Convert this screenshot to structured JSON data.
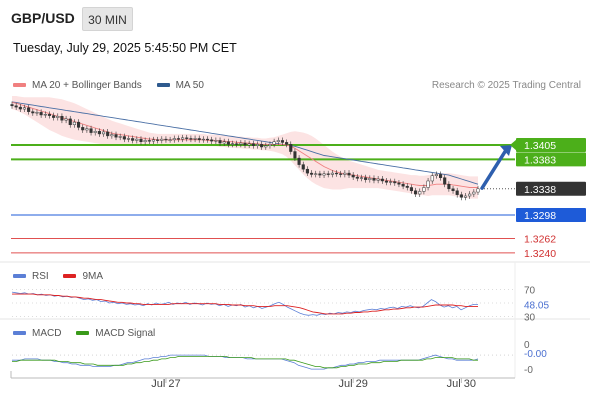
{
  "header": {
    "symbol": "GBP/USD",
    "timeframe": "30 MIN",
    "datetime": "Tuesday, July 29, 2025 5:45:50 PM CET"
  },
  "legend_main": {
    "ma20_label": "MA 20 + Bollinger Bands",
    "ma20_color": "#f08080",
    "ma50_label": "MA 50",
    "ma50_color": "#2e5a8e"
  },
  "credit": "Research © 2025 Trading Central",
  "legend_rsi": {
    "rsi_label": "RSI",
    "rsi_color": "#5b7fd6",
    "ma_label": "9MA",
    "ma_color": "#dd2222"
  },
  "legend_macd": {
    "macd_label": "MACD",
    "macd_color": "#5b7fd6",
    "signal_label": "MACD Signal",
    "signal_color": "#3a9a1a"
  },
  "chart_data": [
    {
      "type": "candlestick",
      "panel": "price",
      "ylim": [
        1.3226,
        1.348
      ],
      "current_price": 1.3338,
      "levels": [
        {
          "value": 1.3405,
          "label": "1.3405",
          "kind": "target",
          "color": "#4caf1a"
        },
        {
          "value": 1.3383,
          "label": "1.3383",
          "kind": "resistance",
          "color": "#4caf1a"
        },
        {
          "value": 1.3298,
          "label": "1.3298",
          "kind": "pivot",
          "color": "#1e5bd8"
        },
        {
          "value": 1.3262,
          "label": "1.3262",
          "kind": "support",
          "color": "#e05050"
        },
        {
          "value": 1.324,
          "label": "1.3240",
          "kind": "support",
          "color": "#e05050"
        }
      ],
      "close": [
        1.3465,
        1.3463,
        1.346,
        1.3462,
        1.3456,
        1.3454,
        1.3455,
        1.3451,
        1.3452,
        1.345,
        1.3447,
        1.3449,
        1.3443,
        1.3445,
        1.3436,
        1.344,
        1.3432,
        1.3428,
        1.343,
        1.3424,
        1.3426,
        1.3422,
        1.3425,
        1.3419,
        1.3421,
        1.3417,
        1.3418,
        1.3414,
        1.3415,
        1.3412,
        1.3414,
        1.341,
        1.3412,
        1.3411,
        1.3413,
        1.3412,
        1.3414,
        1.3413,
        1.3413,
        1.3415,
        1.3414,
        1.3416,
        1.3415,
        1.3414,
        1.3415,
        1.3413,
        1.3414,
        1.3413,
        1.3411,
        1.3412,
        1.3408,
        1.341,
        1.3406,
        1.3407,
        1.3406,
        1.3408,
        1.3405,
        1.3407,
        1.3404,
        1.3406,
        1.3402,
        1.3404,
        1.3406,
        1.341,
        1.3412,
        1.3409,
        1.3406,
        1.3395,
        1.3385,
        1.3375,
        1.3368,
        1.3362,
        1.336,
        1.3361,
        1.3359,
        1.3361,
        1.336,
        1.3362,
        1.3361,
        1.336,
        1.3362,
        1.3359,
        1.3356,
        1.3354,
        1.3355,
        1.3352,
        1.3354,
        1.3351,
        1.3353,
        1.335,
        1.3348,
        1.3349,
        1.3347,
        1.3345,
        1.3342,
        1.334,
        1.3335,
        1.333,
        1.3334,
        1.334,
        1.335,
        1.3358,
        1.336,
        1.3355,
        1.3345,
        1.3338,
        1.3335,
        1.3329,
        1.3325,
        1.3327,
        1.333,
        1.3333,
        1.3338
      ],
      "ma20": [
        1.347,
        1.3469,
        1.3467,
        1.3465,
        1.3463,
        1.3461,
        1.3459,
        1.3457,
        1.3455,
        1.3453,
        1.3451,
        1.3449,
        1.3447,
        1.3445,
        1.3443,
        1.3441,
        1.3439,
        1.3437,
        1.3435,
        1.3433,
        1.3431,
        1.3429,
        1.3427,
        1.3425,
        1.3423,
        1.3422,
        1.3421,
        1.342,
        1.3419,
        1.3418,
        1.3417,
        1.3416,
        1.3415,
        1.3414,
        1.3414,
        1.3413,
        1.3413,
        1.3413,
        1.3413,
        1.3413,
        1.3413,
        1.3413,
        1.3413,
        1.3413,
        1.3413,
        1.3413,
        1.3413,
        1.3412,
        1.3412,
        1.3412,
        1.3411,
        1.3411,
        1.341,
        1.341,
        1.3409,
        1.3409,
        1.3408,
        1.3408,
        1.3407,
        1.3407,
        1.3406,
        1.3406,
        1.3406,
        1.3406,
        1.3406,
        1.3406,
        1.3405,
        1.3403,
        1.34,
        1.3396,
        1.3392,
        1.3388,
        1.3384,
        1.338,
        1.3376,
        1.3372,
        1.3369,
        1.3366,
        1.3364,
        1.3362,
        1.3361,
        1.336,
        1.3359,
        1.3358,
        1.3357,
        1.3356,
        1.3355,
        1.3354,
        1.3353,
        1.3352,
        1.3351,
        1.335,
        1.3349,
        1.3348,
        1.3347,
        1.3346,
        1.3345,
        1.3344,
        1.3343,
        1.3343,
        1.3343,
        1.3344,
        1.3345,
        1.3345,
        1.3345,
        1.3345,
        1.3344,
        1.3343,
        1.3342,
        1.3341,
        1.334,
        1.334,
        1.334
      ],
      "ma50": [
        1.3471,
        1.347,
        1.3469,
        1.3468,
        1.3467,
        1.3466,
        1.3465,
        1.3464,
        1.3463,
        1.3462,
        1.3461,
        1.346,
        1.3459,
        1.3458,
        1.3457,
        1.3456,
        1.3455,
        1.3454,
        1.3453,
        1.3452,
        1.3451,
        1.345,
        1.3449,
        1.3448,
        1.3447,
        1.3446,
        1.3445,
        1.3444,
        1.3443,
        1.3442,
        1.3441,
        1.344,
        1.3439,
        1.3438,
        1.3437,
        1.3436,
        1.3435,
        1.3434,
        1.3433,
        1.3432,
        1.3431,
        1.343,
        1.3429,
        1.3428,
        1.3427,
        1.3426,
        1.3425,
        1.3424,
        1.3423,
        1.3422,
        1.3421,
        1.342,
        1.3419,
        1.3418,
        1.3417,
        1.3416,
        1.3415,
        1.3414,
        1.3413,
        1.3412,
        1.3411,
        1.341,
        1.3409,
        1.3408,
        1.3407,
        1.3406,
        1.3405,
        1.3404,
        1.3403,
        1.3401,
        1.3399,
        1.3397,
        1.3395,
        1.3393,
        1.3391,
        1.3389,
        1.3388,
        1.3387,
        1.3386,
        1.3385,
        1.3384,
        1.3383,
        1.3382,
        1.3381,
        1.338,
        1.3379,
        1.3378,
        1.3377,
        1.3376,
        1.3375,
        1.3374,
        1.3373,
        1.3372,
        1.3371,
        1.337,
        1.3369,
        1.3368,
        1.3367,
        1.3366,
        1.3365,
        1.3364,
        1.3363,
        1.3362,
        1.3361,
        1.336,
        1.3359,
        1.3357,
        1.3355,
        1.3353,
        1.3351,
        1.3349,
        1.3347,
        1.3345
      ],
      "bb_width": [
        0.001,
        0.0011,
        0.0012,
        0.0013,
        0.0015,
        0.0017,
        0.0019,
        0.0021,
        0.0023,
        0.0025,
        0.0026,
        0.0027,
        0.0028,
        0.0028,
        0.0028,
        0.0028,
        0.0027,
        0.0026,
        0.0025,
        0.0024,
        0.0023,
        0.0022,
        0.0021,
        0.002,
        0.0019,
        0.0018,
        0.0017,
        0.0016,
        0.0015,
        0.0014,
        0.0013,
        0.0012,
        0.0011,
        0.001,
        0.0009,
        0.0009,
        0.0009,
        0.0009,
        0.0009,
        0.0009,
        0.0009,
        0.0009,
        0.0009,
        0.0009,
        0.0009,
        0.0009,
        0.0009,
        0.0009,
        0.0009,
        0.0009,
        0.0009,
        0.0009,
        0.0009,
        0.0009,
        0.0009,
        0.0009,
        0.0009,
        0.0009,
        0.0009,
        0.0009,
        0.0009,
        0.0009,
        0.001,
        0.0011,
        0.0013,
        0.0015,
        0.0018,
        0.0022,
        0.0026,
        0.0029,
        0.0032,
        0.0034,
        0.0035,
        0.0035,
        0.0034,
        0.0033,
        0.0031,
        0.0029,
        0.0027,
        0.0025,
        0.0023,
        0.0021,
        0.002,
        0.0019,
        0.0018,
        0.0017,
        0.0016,
        0.0015,
        0.0014,
        0.0014,
        0.0014,
        0.0014,
        0.0014,
        0.0014,
        0.0014,
        0.0014,
        0.0014,
        0.0015,
        0.0015,
        0.0015,
        0.0016,
        0.0016,
        0.0017,
        0.0017,
        0.0017,
        0.0017,
        0.0017,
        0.0017,
        0.0017,
        0.0017,
        0.0017,
        0.0017,
        0.0017
      ],
      "forecast_arrow": {
        "from": 1.3339,
        "to": 1.3405
      }
    },
    {
      "type": "line",
      "panel": "rsi",
      "ylim": [
        28,
        72
      ],
      "ticks": [
        "70",
        "30"
      ],
      "current_value": "48.05",
      "series": [
        {
          "name": "RSI",
          "values": [
            66,
            65,
            64,
            65,
            63,
            64,
            62,
            63,
            61,
            62,
            60,
            61,
            59,
            60,
            58,
            59,
            57,
            55,
            56,
            54,
            55,
            52,
            53,
            50,
            51,
            49,
            50,
            48,
            49,
            47,
            48,
            46,
            49,
            47,
            50,
            48,
            49,
            51,
            48,
            50,
            49,
            51,
            48,
            50,
            49,
            47,
            50,
            48,
            49,
            46,
            48,
            45,
            47,
            46,
            48,
            44,
            46,
            43,
            45,
            42,
            44,
            46,
            49,
            51,
            48,
            44,
            41,
            38,
            35,
            33,
            32,
            33,
            32,
            34,
            33,
            35,
            34,
            36,
            35,
            37,
            36,
            38,
            37,
            39,
            40,
            41,
            40,
            42,
            41,
            43,
            44,
            42,
            45,
            44,
            46,
            44,
            43,
            45,
            50,
            55,
            52,
            47,
            44,
            46,
            43,
            45,
            40,
            43,
            46,
            48,
            48
          ]
        },
        {
          "name": "9MA",
          "values": [
            63,
            63,
            63,
            63,
            63,
            63,
            62,
            62,
            62,
            62,
            61,
            61,
            60,
            60,
            59,
            59,
            58,
            57,
            57,
            56,
            55,
            55,
            54,
            53,
            52,
            51,
            51,
            50,
            50,
            49,
            49,
            48,
            48,
            48,
            48,
            48,
            48,
            48,
            49,
            49,
            49,
            49,
            49,
            49,
            49,
            49,
            49,
            49,
            49,
            48,
            48,
            48,
            47,
            47,
            47,
            46,
            46,
            46,
            45,
            45,
            45,
            45,
            46,
            46,
            46,
            46,
            45,
            44,
            43,
            41,
            39,
            37,
            36,
            35,
            34,
            34,
            34,
            34,
            34,
            35,
            35,
            36,
            36,
            37,
            37,
            38,
            38,
            39,
            40,
            40,
            41,
            41,
            42,
            43,
            43,
            44,
            44,
            44,
            45,
            46,
            47,
            47,
            47,
            47,
            47,
            46,
            46,
            45,
            45,
            45,
            45
          ]
        }
      ]
    },
    {
      "type": "line",
      "panel": "macd",
      "ylim": [
        -0.00125,
        0.00095
      ],
      "ticks": [
        "0",
        "-0"
      ],
      "current_value": "-0.00",
      "series": [
        {
          "name": "MACD",
          "values": [
            -0.0004,
            -0.0004,
            -0.0004,
            -0.0003,
            -0.0003,
            -0.0003,
            -0.0003,
            -0.0004,
            -0.0004,
            -0.0004,
            -0.0005,
            -0.0005,
            -0.0006,
            -0.0006,
            -0.0007,
            -0.0007,
            -0.0008,
            -0.0008,
            -0.0008,
            -0.0009,
            -0.0009,
            -0.0009,
            -0.0009,
            -0.0009,
            -0.0008,
            -0.0008,
            -0.0007,
            -0.0006,
            -0.0006,
            -0.0005,
            -0.0004,
            -0.0003,
            -0.0003,
            -0.0002,
            -0.0002,
            -0.0001,
            -0.0001,
            0.0,
            0.0,
            0.0,
            0.0,
            0.0,
            0.0,
            0.0,
            0.0,
            0.0,
            -0.0001,
            -0.0001,
            -0.0001,
            -0.0001,
            -0.0002,
            -0.0002,
            -0.0002,
            -0.0002,
            -0.0002,
            -0.0003,
            -0.0003,
            -0.0003,
            -0.0003,
            -0.0003,
            -0.0003,
            -0.0003,
            -0.0003,
            -0.0003,
            -0.0004,
            -0.0005,
            -0.0006,
            -0.0008,
            -0.0009,
            -0.001,
            -0.0011,
            -0.0011,
            -0.0011,
            -0.0011,
            -0.001,
            -0.001,
            -0.0009,
            -0.0008,
            -0.0008,
            -0.0007,
            -0.0007,
            -0.0006,
            -0.0006,
            -0.0005,
            -0.0005,
            -0.0005,
            -0.0004,
            -0.0004,
            -0.0004,
            -0.0004,
            -0.0004,
            -0.0004,
            -0.0004,
            -0.0004,
            -0.0004,
            -0.0004,
            -0.0003,
            -0.0002,
            -0.0001,
            0.0,
            -0.0001,
            -0.0002,
            -0.0003,
            -0.0003,
            -0.0004,
            -0.0004,
            -0.0004,
            -0.0004,
            -0.0004,
            -0.0003
          ]
        },
        {
          "name": "MACD Signal",
          "values": [
            -0.0005,
            -0.0005,
            -0.0004,
            -0.0004,
            -0.0004,
            -0.0004,
            -0.0004,
            -0.0004,
            -0.0004,
            -0.0004,
            -0.0004,
            -0.0005,
            -0.0005,
            -0.0005,
            -0.0006,
            -0.0006,
            -0.0006,
            -0.0007,
            -0.0007,
            -0.0007,
            -0.0008,
            -0.0008,
            -0.0008,
            -0.0008,
            -0.0008,
            -0.0008,
            -0.0008,
            -0.0007,
            -0.0007,
            -0.0006,
            -0.0006,
            -0.0005,
            -0.0005,
            -0.0004,
            -0.0004,
            -0.0003,
            -0.0003,
            -0.0002,
            -0.0002,
            -0.0001,
            -0.0001,
            -0.0001,
            -0.0001,
            -0.0001,
            -0.0001,
            -0.0001,
            -0.0001,
            -0.0001,
            -0.0001,
            -0.0001,
            -0.0001,
            -0.0002,
            -0.0002,
            -0.0002,
            -0.0002,
            -0.0002,
            -0.0002,
            -0.0003,
            -0.0003,
            -0.0003,
            -0.0003,
            -0.0003,
            -0.0003,
            -0.0003,
            -0.0003,
            -0.0004,
            -0.0004,
            -0.0005,
            -0.0006,
            -0.0007,
            -0.0008,
            -0.0009,
            -0.0009,
            -0.001,
            -0.001,
            -0.001,
            -0.001,
            -0.0009,
            -0.0009,
            -0.0008,
            -0.0008,
            -0.0007,
            -0.0007,
            -0.0007,
            -0.0006,
            -0.0006,
            -0.0006,
            -0.0005,
            -0.0005,
            -0.0005,
            -0.0005,
            -0.0004,
            -0.0004,
            -0.0004,
            -0.0004,
            -0.0004,
            -0.0004,
            -0.0003,
            -0.0003,
            -0.0002,
            -0.0002,
            -0.0002,
            -0.0002,
            -0.0002,
            -0.0003,
            -0.0003,
            -0.0003,
            -0.0003,
            -0.0004,
            -0.0004
          ]
        }
      ]
    }
  ],
  "x_axis": {
    "tick_labels": [
      {
        "label": "Jul 27",
        "index": 37
      },
      {
        "label": "Jul 29",
        "index": 82
      },
      {
        "label": "Jul 30",
        "index": 108
      }
    ]
  }
}
